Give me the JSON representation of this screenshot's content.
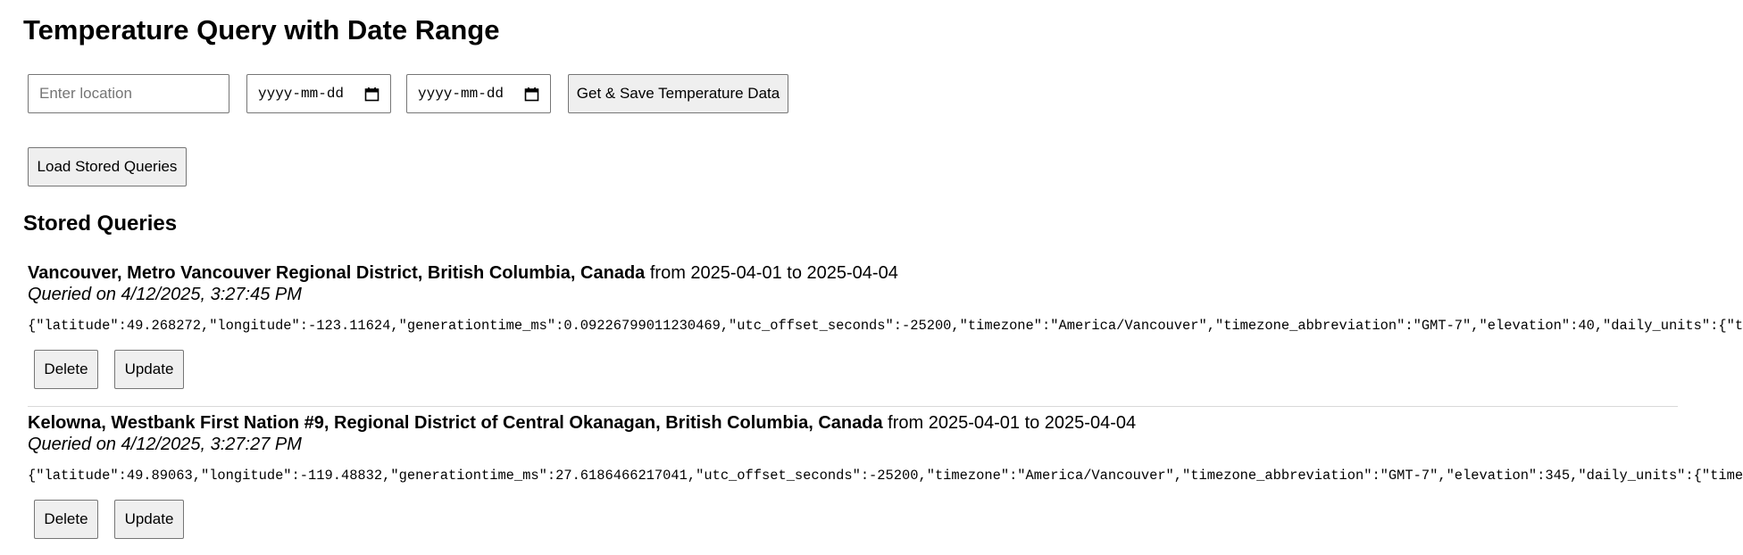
{
  "page_title": "Temperature Query with Date Range",
  "form": {
    "location_placeholder": "Enter location",
    "start_date_text": "yyyy-mm-dd",
    "end_date_text": "yyyy-mm-dd",
    "submit_label": "Get & Save Temperature Data"
  },
  "load_button_label": "Load Stored Queries",
  "stored_heading": "Stored Queries",
  "queries": [
    {
      "location": "Vancouver, Metro Vancouver Regional District, British Columbia, Canada",
      "range_text": " from 2025-04-01 to 2025-04-04",
      "queried_on": "Queried on 4/12/2025, 3:27:45 PM",
      "json": "{\"latitude\":49.268272,\"longitude\":-123.11624,\"generationtime_ms\":0.09226799011230469,\"utc_offset_seconds\":-25200,\"timezone\":\"America/Vancouver\",\"timezone_abbreviation\":\"GMT-7\",\"elevation\":40,\"daily_units\":{\"t",
      "delete_label": "Delete",
      "update_label": "Update"
    },
    {
      "location": "Kelowna, Westbank First Nation #9, Regional District of Central Okanagan, British Columbia, Canada",
      "range_text": " from 2025-04-01 to 2025-04-04",
      "queried_on": "Queried on 4/12/2025, 3:27:27 PM",
      "json": "{\"latitude\":49.89063,\"longitude\":-119.48832,\"generationtime_ms\":27.6186466217041,\"utc_offset_seconds\":-25200,\"timezone\":\"America/Vancouver\",\"timezone_abbreviation\":\"GMT-7\",\"elevation\":345,\"daily_units\":{\"time",
      "delete_label": "Delete",
      "update_label": "Update"
    }
  ],
  "icons": {
    "calendar": "calendar-icon"
  }
}
